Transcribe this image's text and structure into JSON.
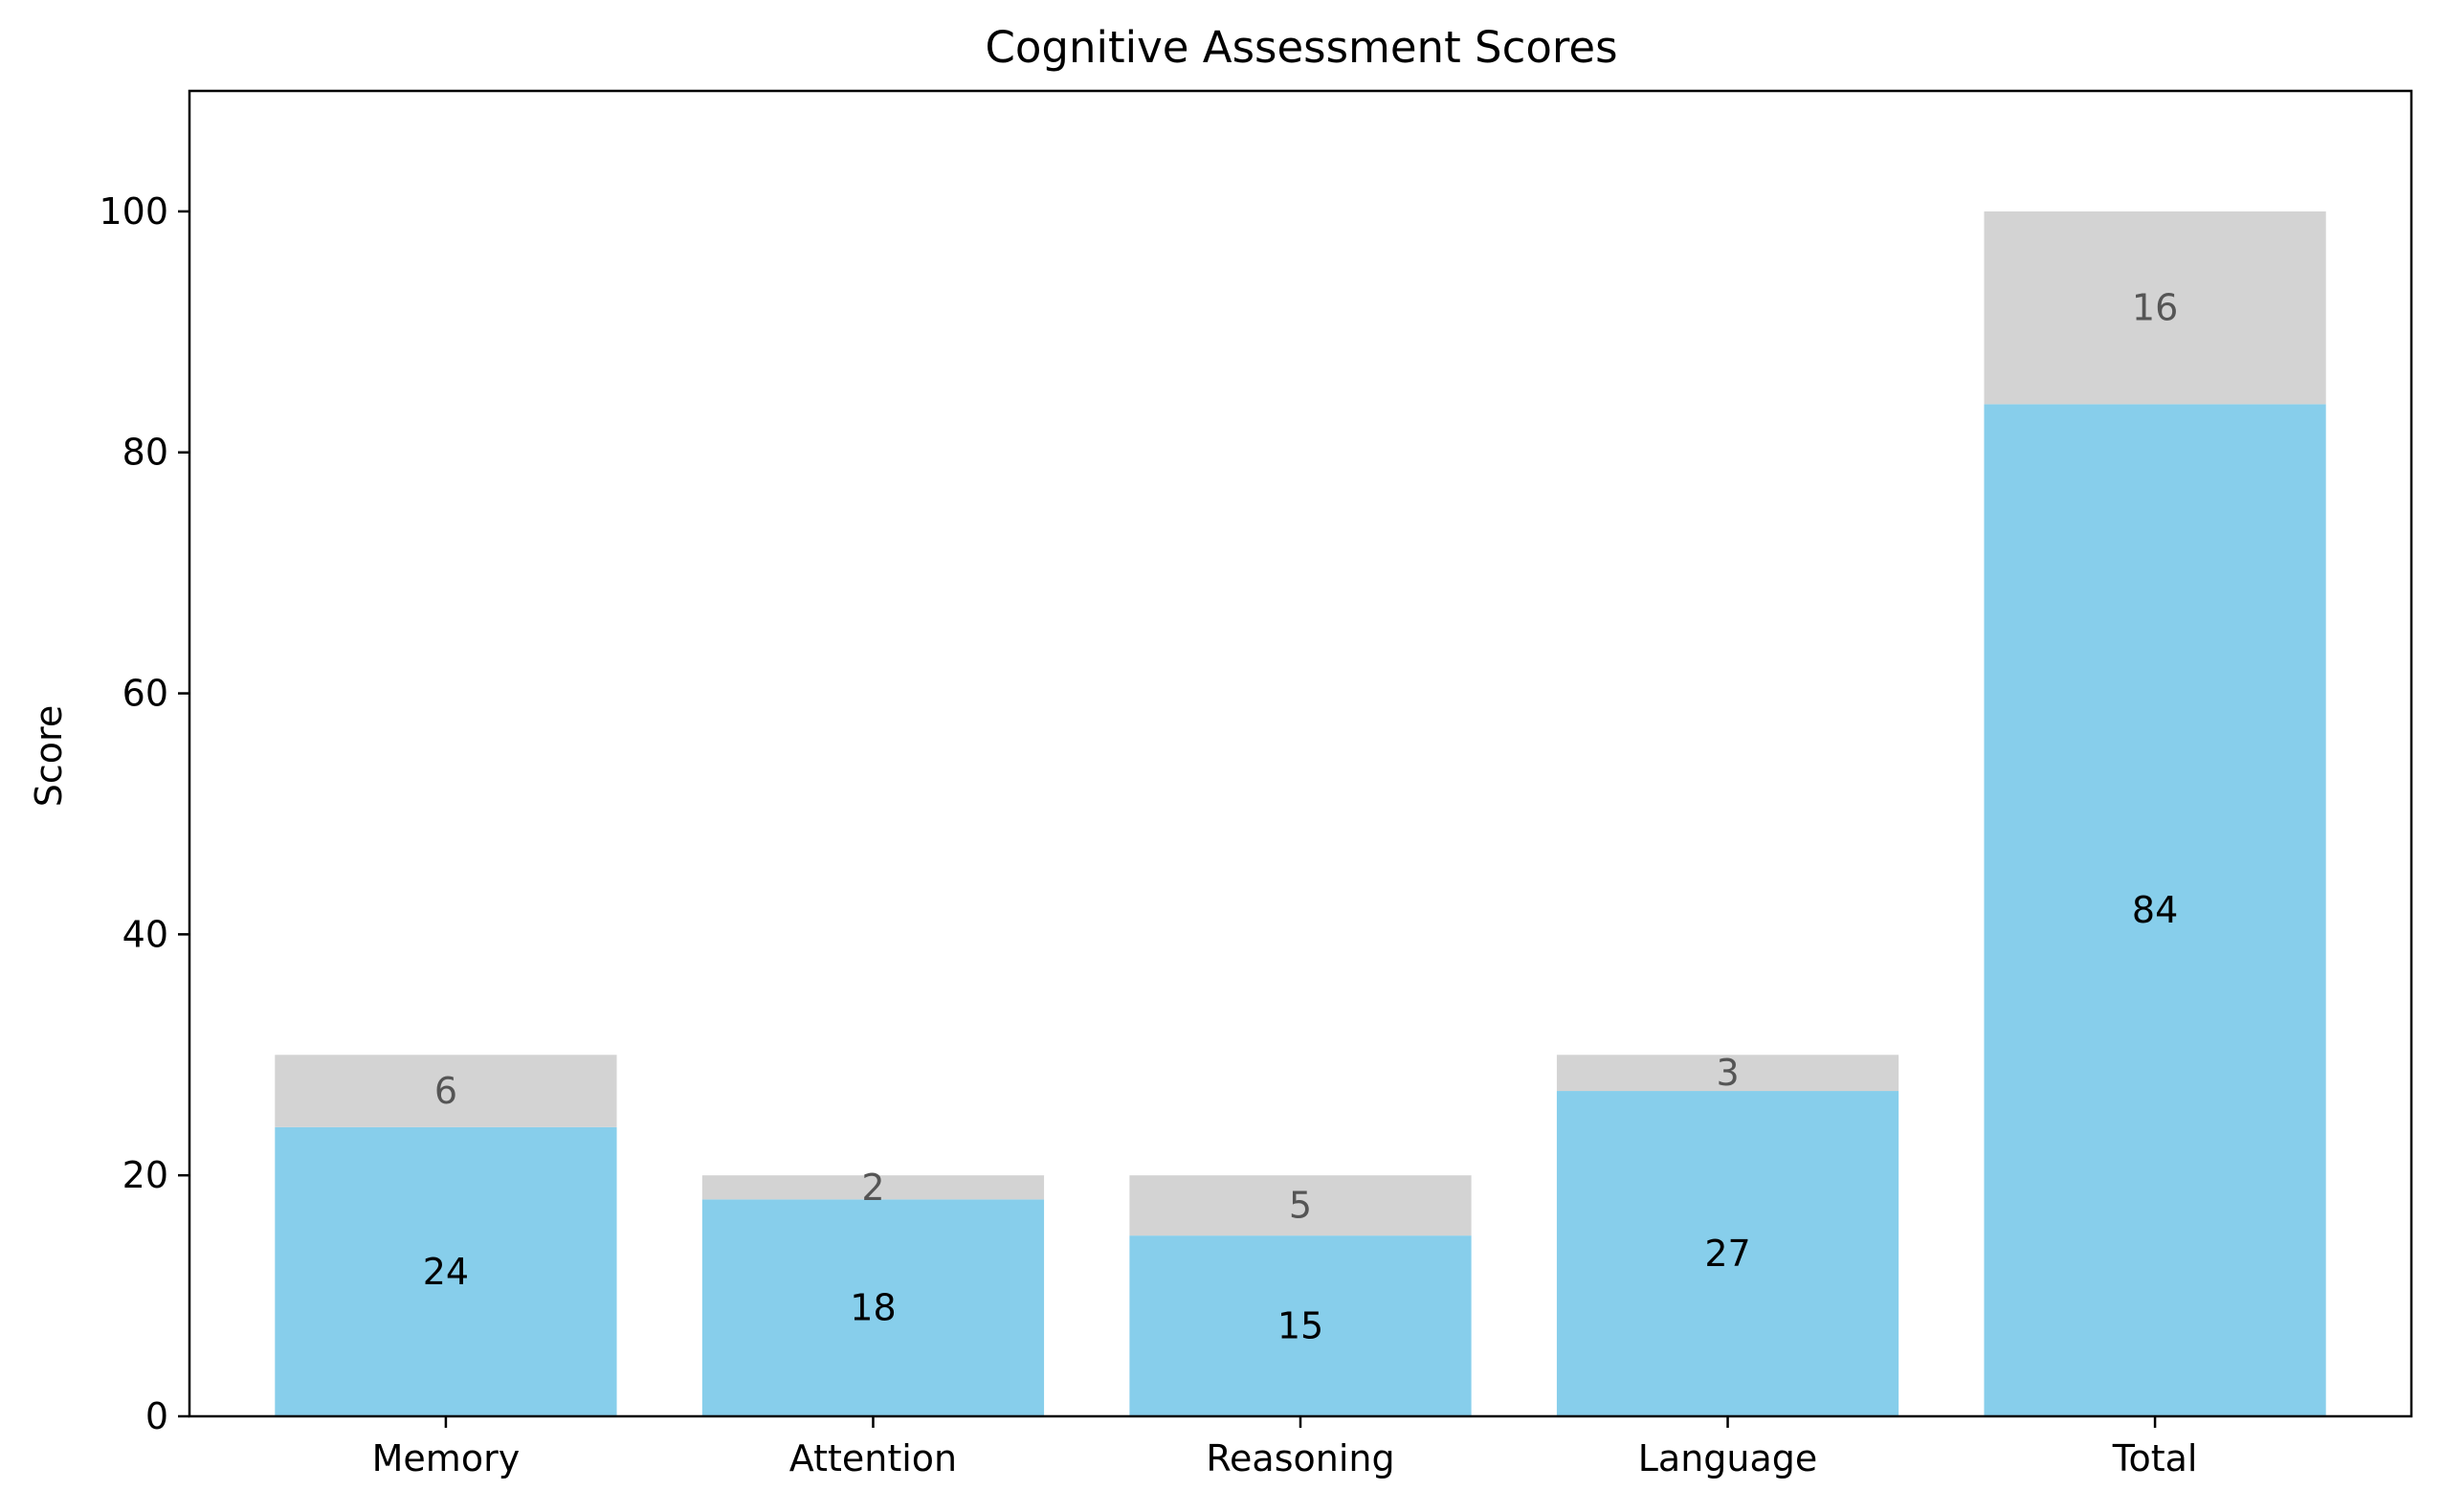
{
  "chart_data": {
    "type": "bar",
    "stacked": true,
    "title": "Cognitive Assessment Scores",
    "xlabel": "",
    "ylabel": "Score",
    "categories": [
      "Memory",
      "Attention",
      "Reasoning",
      "Language",
      "Total"
    ],
    "series": [
      {
        "values": [
          24,
          18,
          15,
          27,
          84
        ],
        "color": "#87CEEB",
        "label_color": "#000000"
      },
      {
        "values": [
          6,
          2,
          5,
          3,
          16
        ],
        "color": "#D3D3D3",
        "label_color": "#555555"
      }
    ],
    "ylim": [
      0,
      110
    ],
    "yticks": [
      0,
      20,
      40,
      60,
      80,
      100
    ],
    "grid": false,
    "legend": "none"
  }
}
